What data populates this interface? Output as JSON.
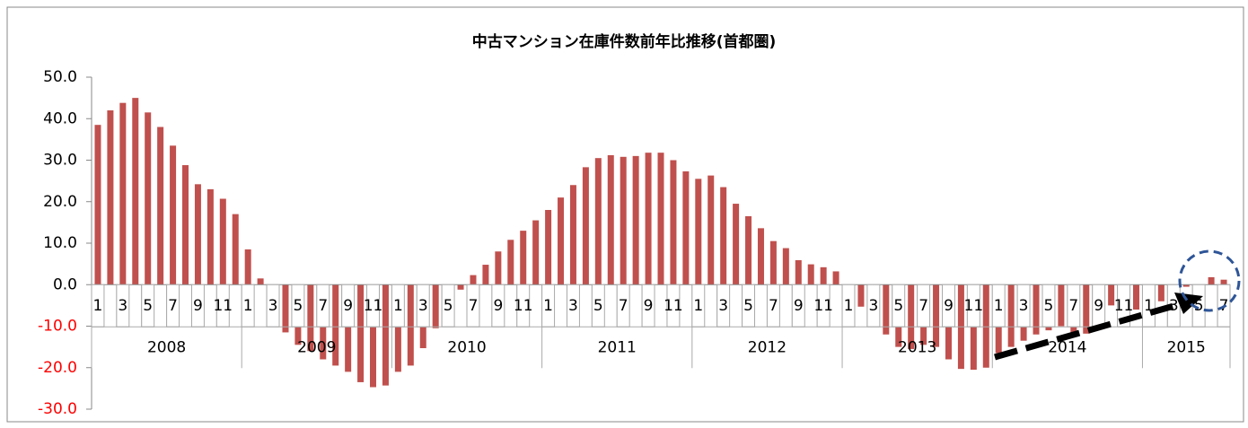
{
  "chart_data": {
    "type": "bar",
    "title": "中古マンション在庫件数前年比推移(首都圏)",
    "categories": [
      "1",
      null,
      "3",
      null,
      "5",
      null,
      "7",
      null,
      "9",
      null,
      "11",
      null,
      "1",
      null,
      "3",
      null,
      "5",
      null,
      "7",
      null,
      "9",
      null,
      "11",
      null,
      "1",
      null,
      "3",
      null,
      "5",
      null,
      "7",
      null,
      "9",
      null,
      "11",
      null,
      "1",
      null,
      "3",
      null,
      "5",
      null,
      "7",
      null,
      "9",
      null,
      "11",
      null,
      "1",
      null,
      "3",
      null,
      "5",
      null,
      "7",
      null,
      "9",
      null,
      "11",
      null,
      "1",
      null,
      "3",
      null,
      "5",
      null,
      "7",
      null,
      "9",
      null,
      "11",
      null,
      "1",
      null,
      "3",
      null,
      "5",
      null,
      "7",
      null,
      "9",
      null,
      "11",
      null,
      "1",
      null,
      "3",
      null,
      "5",
      null,
      "7"
    ],
    "years": [
      "2008",
      "2009",
      "2010",
      "2011",
      "2012",
      "2013",
      "2014",
      "2015"
    ],
    "values": [
      38.5,
      42,
      43.8,
      45,
      41.5,
      38,
      33.5,
      28.8,
      24.2,
      23,
      20.7,
      17,
      8.5,
      1.5,
      -5.5,
      -11.5,
      -14.5,
      -16,
      -18,
      -19.5,
      -21,
      -23.5,
      -24.7,
      -24.3,
      -21,
      -19.5,
      -15.3,
      -10.5,
      -5.5,
      -1.2,
      2.3,
      4.8,
      8,
      10.8,
      13,
      15.5,
      18,
      21,
      24,
      28.3,
      30.5,
      31.2,
      30.8,
      31,
      31.8,
      31.8,
      30,
      27.3,
      25.5,
      26.3,
      23.5,
      19.5,
      16.5,
      13.6,
      10.5,
      8.8,
      5.9,
      4.9,
      4.2,
      3.2,
      0,
      -5.3,
      -9,
      -12,
      -15,
      -15.5,
      -14.5,
      -15,
      -18,
      -20.3,
      -20.5,
      -20,
      -16.5,
      -15,
      -13.5,
      -12,
      -11,
      -10,
      -11.5,
      -11.8,
      -5.5,
      -5,
      -6,
      -6,
      -5.5,
      -4,
      -2.7,
      -0.5,
      -0.3,
      1.8,
      1.2
    ],
    "color": "#c0504d",
    "ylim": [
      -30,
      50
    ],
    "yticks": [
      {
        "value": -30,
        "label": "-30.0"
      },
      {
        "value": -20,
        "label": "-20.0"
      },
      {
        "value": -10,
        "label": "-10.0"
      },
      {
        "value": 0,
        "label": "0.0"
      },
      {
        "value": 10,
        "label": "10.0"
      },
      {
        "value": 20,
        "label": "20.0"
      },
      {
        "value": 30,
        "label": "30.0"
      },
      {
        "value": 40,
        "label": "40.0"
      },
      {
        "value": 50,
        "label": "50.0"
      }
    ],
    "negative_tick_label_color": "#ff0000"
  }
}
